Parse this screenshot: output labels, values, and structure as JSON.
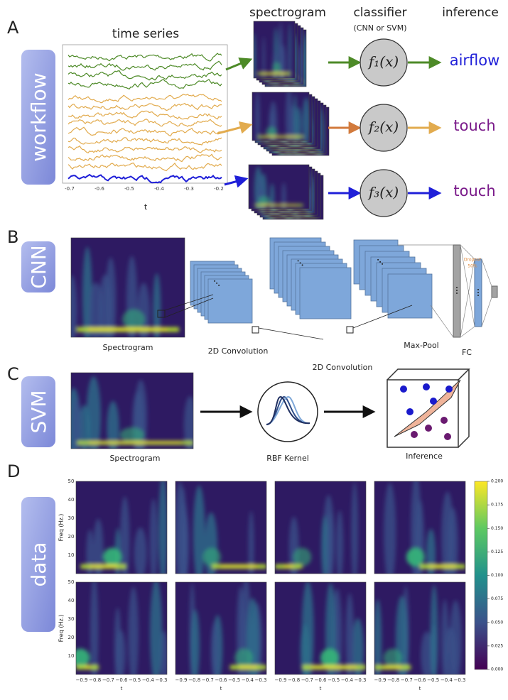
{
  "panel_a": {
    "label": "A",
    "side_label": "workflow",
    "time_series": {
      "title": "time series",
      "x_label": "t",
      "x_ticks": [
        "-0.7",
        "-0.6",
        "-0.5",
        "-0.4",
        "-0.3",
        "-0.2"
      ]
    },
    "headers": {
      "spectrogram": "spectrogram",
      "classifier": "classifier",
      "classifier_note": "(CNN or SVM)",
      "inference": "inference"
    },
    "classifiers": [
      {
        "function": "f₁(x)",
        "inference": "airflow"
      },
      {
        "function": "f₂(x)",
        "inference": "touch"
      },
      {
        "function": "f₃(x)",
        "inference": "touch"
      }
    ]
  },
  "panel_b": {
    "label": "B",
    "side_label": "CNN",
    "layers": [
      "Spectrogram",
      "2D Convolution",
      "2D Convolution",
      "Max-Pool",
      "FC"
    ],
    "dropout": [
      "Dropout",
      "50%"
    ]
  },
  "panel_c": {
    "label": "C",
    "side_label": "SVM",
    "steps": [
      "Spectrogram",
      "RBF Kernel",
      "Inference"
    ]
  },
  "panel_d": {
    "label": "D",
    "side_label": "data",
    "y_label": "Freq (Hz.)",
    "y_ticks": [
      "10",
      "20",
      "30",
      "40",
      "50"
    ],
    "x_label": "t",
    "x_ticks": [
      "−0.9",
      "−0.8",
      "−0.7",
      "−0.6",
      "−0.5",
      "−0.4",
      "−0.3"
    ],
    "colorbar_ticks": [
      "0.000",
      "0.025",
      "0.050",
      "0.075",
      "0.100",
      "0.125",
      "0.150",
      "0.175",
      "0.200"
    ]
  }
}
